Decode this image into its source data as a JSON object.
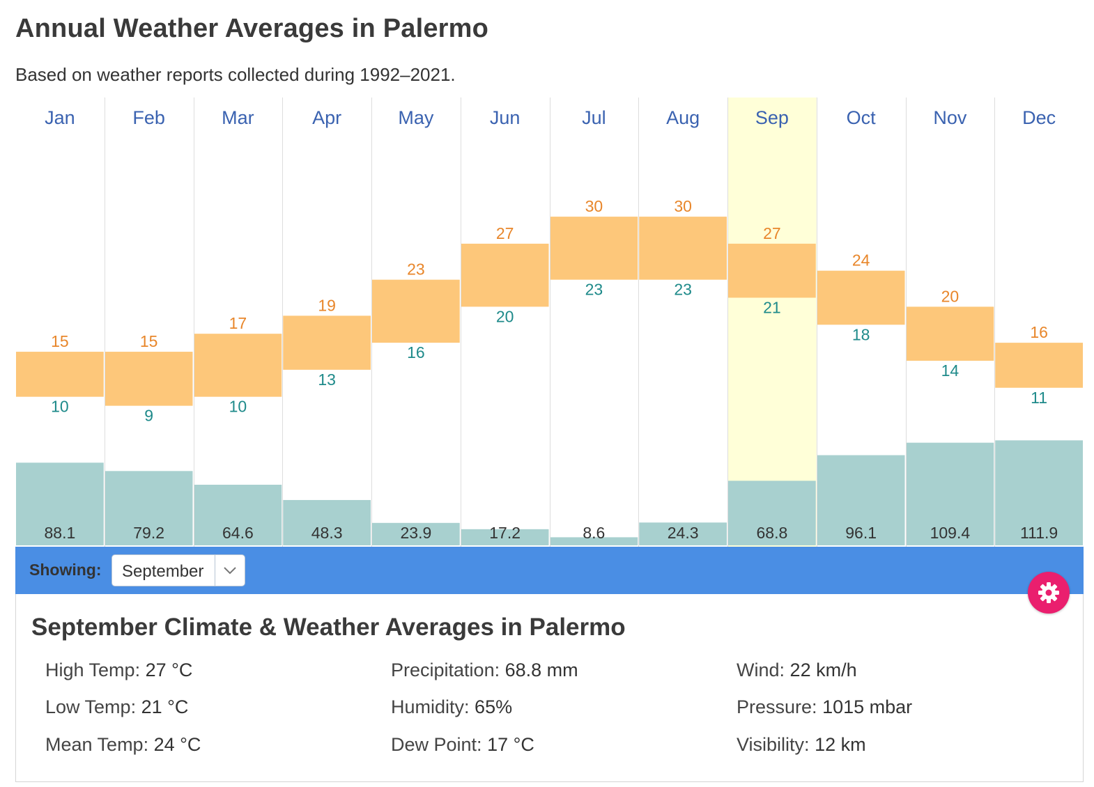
{
  "title": "Annual Weather Averages in Palermo",
  "subtitle": "Based on weather reports collected during 1992–2021.",
  "chart_data": {
    "type": "bar",
    "categories": [
      "Jan",
      "Feb",
      "Mar",
      "Apr",
      "May",
      "Jun",
      "Jul",
      "Aug",
      "Sep",
      "Oct",
      "Nov",
      "Dec"
    ],
    "highlighted": "Sep",
    "series": [
      {
        "name": "High Temp (°C)",
        "values": [
          15,
          15,
          17,
          19,
          23,
          27,
          30,
          30,
          27,
          24,
          20,
          16
        ]
      },
      {
        "name": "Low Temp (°C)",
        "values": [
          10,
          9,
          10,
          13,
          16,
          20,
          23,
          23,
          21,
          18,
          14,
          11
        ]
      },
      {
        "name": "Precipitation (mm)",
        "values": [
          88.1,
          79.2,
          64.6,
          48.3,
          23.9,
          17.2,
          8.6,
          24.3,
          68.8,
          96.1,
          109.4,
          111.9
        ]
      }
    ],
    "colors": {
      "temp_band": "#fdc77a",
      "high_label": "#e8862a",
      "low_label": "#1e8a8a",
      "precip": "#a8d0cf",
      "month_label": "#3a62b0",
      "highlight": "#ffffd8",
      "grid": "#dddddd"
    }
  },
  "showing": {
    "label": "Showing:",
    "selected": "September"
  },
  "details": {
    "heading": "September Climate & Weather Averages in Palermo",
    "high_temp": {
      "label": "High Temp:",
      "value": "27 °C"
    },
    "low_temp": {
      "label": "Low Temp:",
      "value": "21 °C"
    },
    "mean_temp": {
      "label": "Mean Temp:",
      "value": "24 °C"
    },
    "precipitation": {
      "label": "Precipitation:",
      "value": "68.8 mm"
    },
    "humidity": {
      "label": "Humidity:",
      "value": "65%"
    },
    "dew_point": {
      "label": "Dew Point:",
      "value": "17 °C"
    },
    "wind": {
      "label": "Wind:",
      "value": "22 km/h"
    },
    "pressure": {
      "label": "Pressure:",
      "value": "1015 mbar"
    },
    "visibility": {
      "label": "Visibility:",
      "value": "12 km"
    }
  },
  "icons": {
    "settings": "gear-icon",
    "dropdown": "chevron-down-icon"
  }
}
